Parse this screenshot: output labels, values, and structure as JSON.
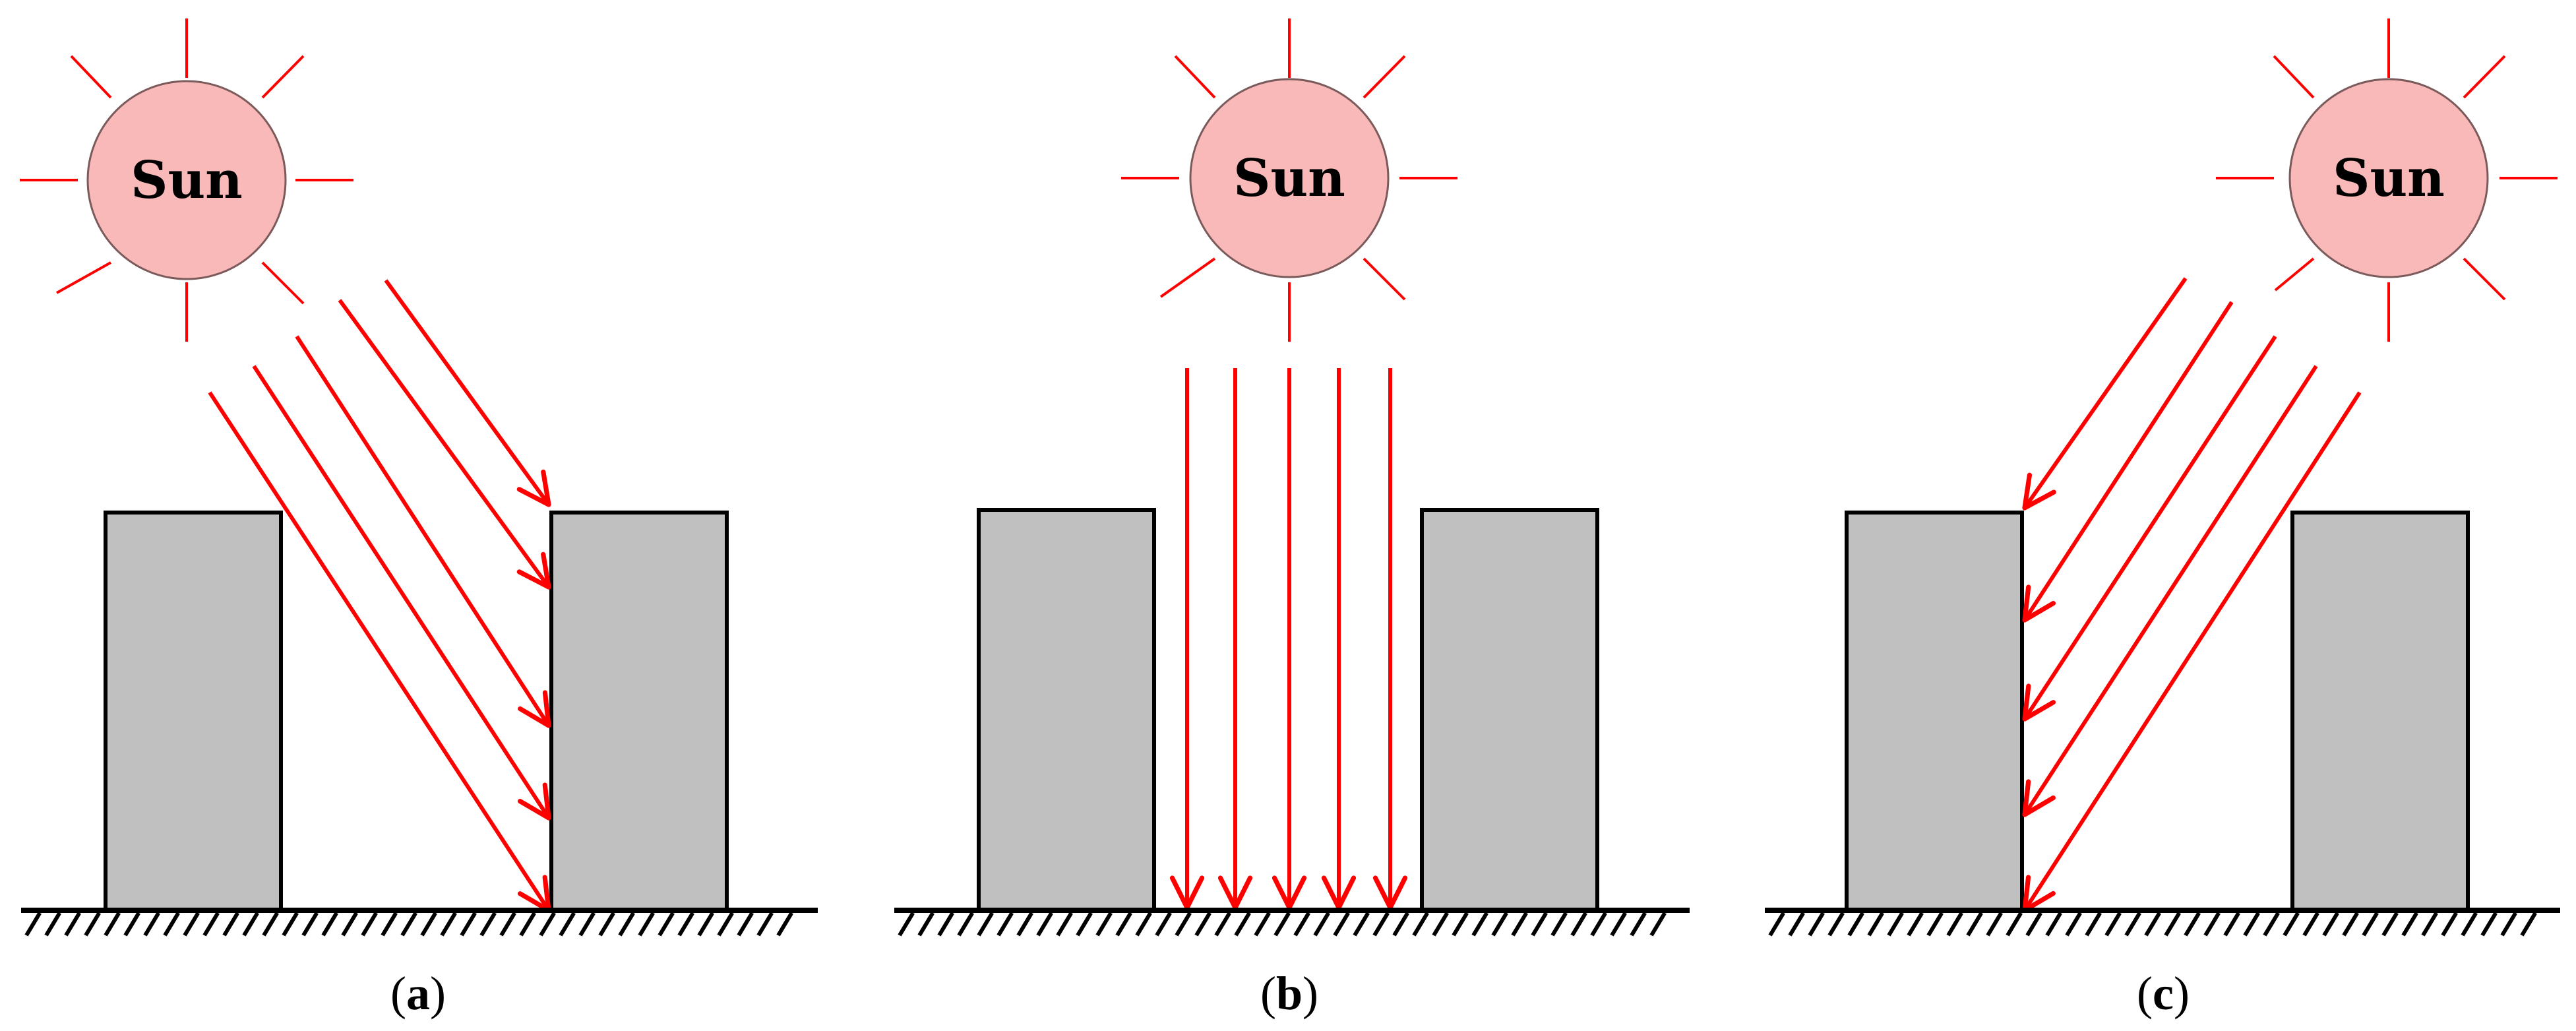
{
  "colors": {
    "ray": "#ff0000",
    "sun_fill": "#f9b9b9",
    "sun_stroke": "#7a5a5a",
    "building_fill": "#c0c0c0",
    "building_stroke": "#000000",
    "ground": "#000000"
  },
  "panels": [
    {
      "id": "a",
      "sun_label": "Sun",
      "caption_open": "(",
      "caption_letter": "a",
      "caption_close": ")",
      "ray_direction": "down-right",
      "rays_hit": "right-building-wall-and-ground"
    },
    {
      "id": "b",
      "sun_label": "Sun",
      "caption_open": "(",
      "caption_letter": "b",
      "caption_close": ")",
      "ray_direction": "vertical",
      "rays_hit": "ground-between-buildings"
    },
    {
      "id": "c",
      "sun_label": "Sun",
      "caption_open": "(",
      "caption_letter": "c",
      "caption_close": ")",
      "ray_direction": "down-left",
      "rays_hit": "left-building-wall-and-ground"
    }
  ]
}
